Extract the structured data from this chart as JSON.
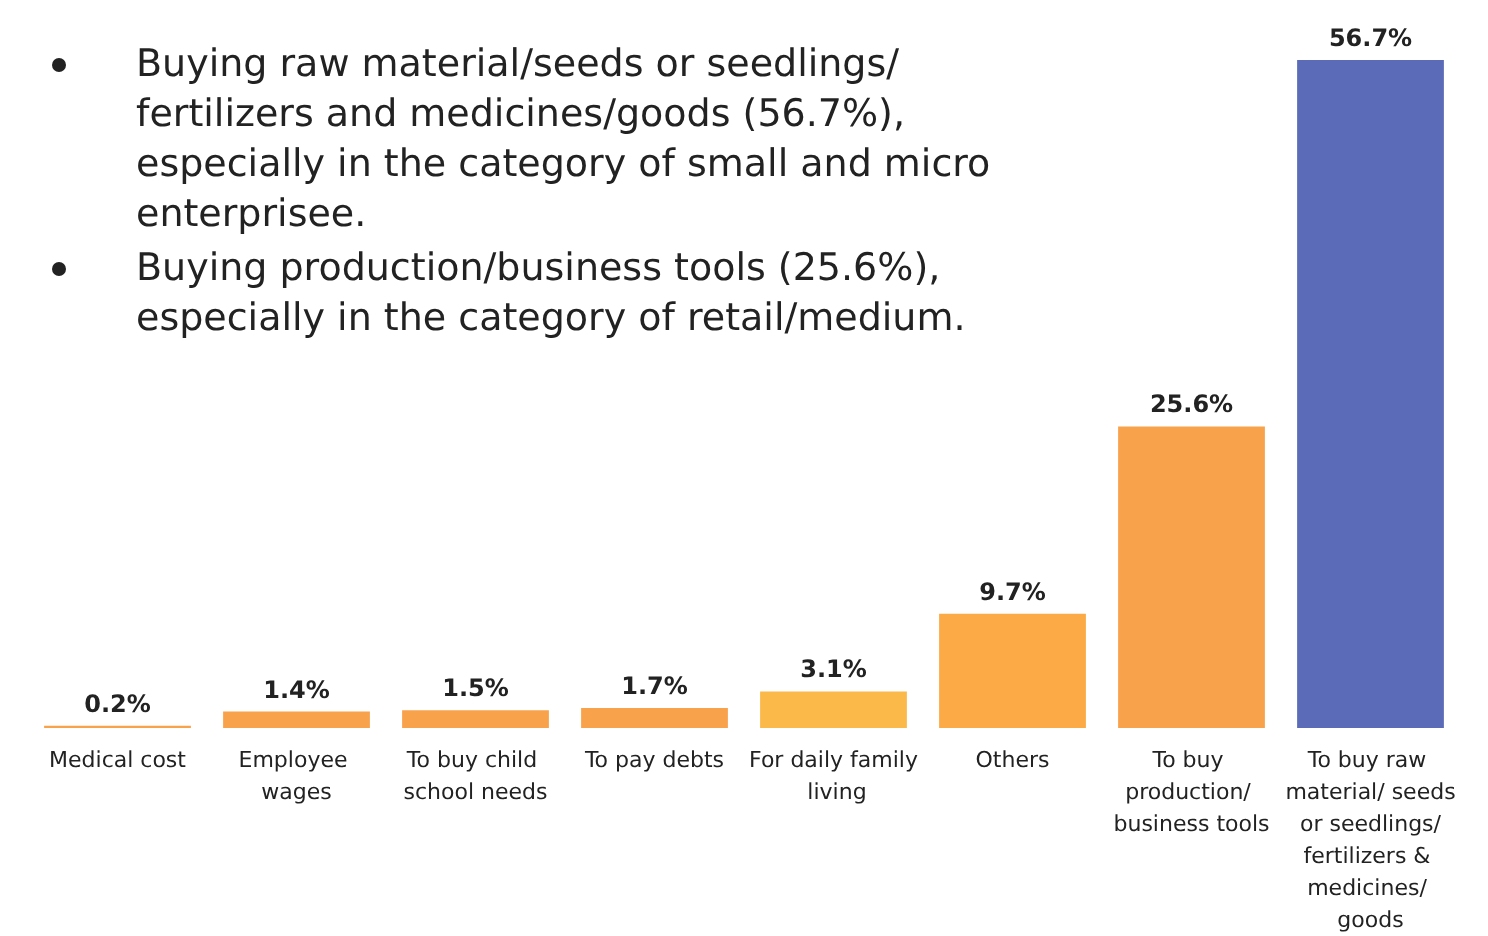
{
  "chart_data": {
    "type": "bar",
    "categories": [
      "Medical cost",
      "Employee wages",
      "To buy child school needs",
      "To pay debts",
      "For daily family living",
      "Others",
      "To buy production/ business tools",
      "To buy raw material/ seeds or seedlings/ fertilizers & medicines/ goods"
    ],
    "values": [
      0.2,
      1.4,
      1.5,
      1.7,
      3.1,
      9.7,
      25.6,
      56.7
    ],
    "colors": [
      "#f9a24c",
      "#f9a24c",
      "#f9a24c",
      "#f9a24c",
      "#fbb94a",
      "#fbaa45",
      "#f9a24c",
      "#5b6bb8"
    ],
    "value_labels": [
      "0.2%",
      "1.4%",
      "1.5%",
      "1.7%",
      "3.1%",
      "9.7%",
      "25.6%",
      "56.7%"
    ],
    "annotations": [
      "Buying raw material/seeds or seedlings/ fertilizers and medicines/goods (56.7%), especially in the category of small and micro enterprisee.",
      "Buying production/business tools (25.6%), especially in the category of retail/medium."
    ]
  }
}
